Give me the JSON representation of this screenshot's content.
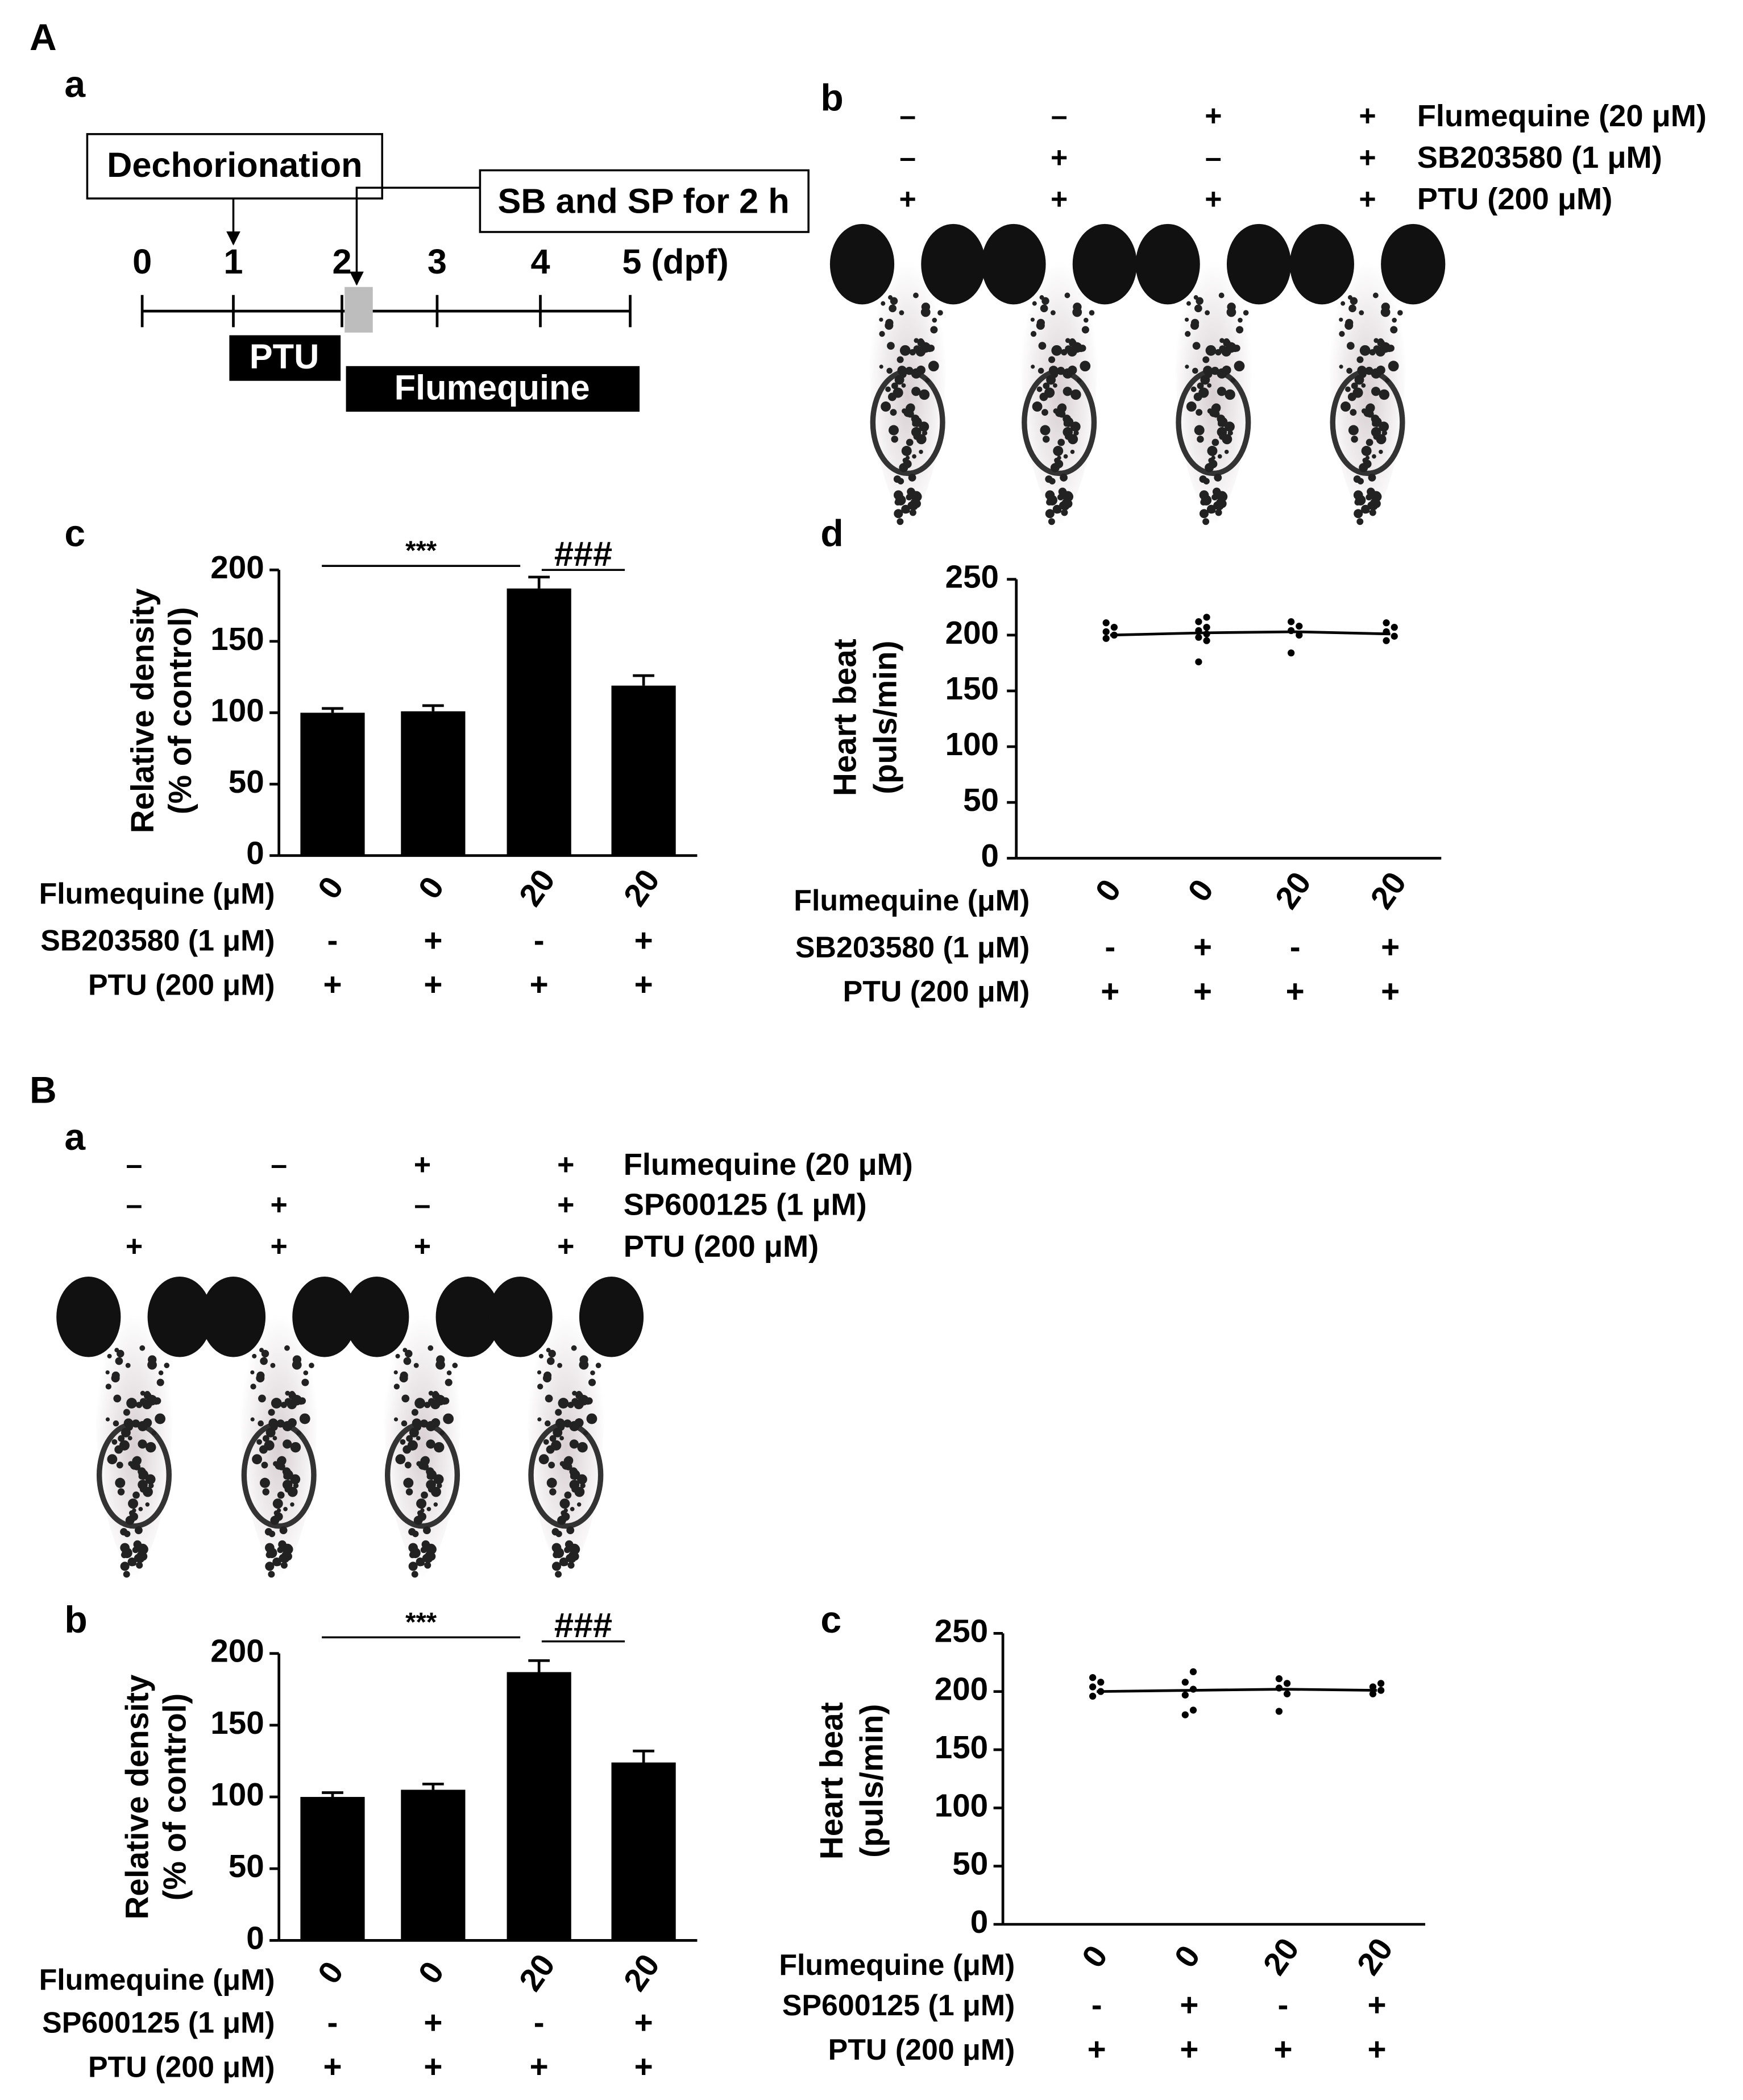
{
  "panel_labels": [
    "A",
    "a",
    "b",
    "c",
    "d",
    "B",
    "a",
    "b",
    "c"
  ],
  "timeline": {
    "boxes": [
      "Dechorionation",
      "SB and SP for 2 h"
    ],
    "ticks": [
      "0",
      "1",
      "2",
      "3",
      "4",
      "5 (dpf)"
    ],
    "bars": [
      "PTU",
      "Flumequine"
    ]
  },
  "treatments": [
    {
      "rows": [
        {
          "label": "Flumequine (20 μM)",
          "signs": [
            "–",
            "–",
            "+",
            "+"
          ]
        },
        {
          "label": "SB203580 (1 μM)",
          "signs": [
            "–",
            "+",
            "–",
            "+"
          ]
        },
        {
          "label": "PTU (200 μM)",
          "signs": [
            "+",
            "+",
            "+",
            "+"
          ]
        }
      ]
    },
    {
      "rows": [
        {
          "label": "Flumequine (20 μM)",
          "signs": [
            "–",
            "–",
            "+",
            "+"
          ]
        },
        {
          "label": "SP600125 (1 μM)",
          "signs": [
            "–",
            "+",
            "–",
            "+"
          ]
        },
        {
          "label": "PTU (200 μM)",
          "signs": [
            "+",
            "+",
            "+",
            "+"
          ]
        }
      ]
    }
  ],
  "chart_data": [
    {
      "type": "bar",
      "ylabel": [
        "Relative density",
        "(% of control)"
      ],
      "category_label": "Flumequine (μM)",
      "categories": [
        "0",
        "0",
        "20",
        "20"
      ],
      "condition_rows": [
        {
          "label": "SB203580 (1 μM)",
          "signs": [
            "-",
            "+",
            "-",
            "+"
          ]
        },
        {
          "label": "PTU (200 μM)",
          "signs": [
            "+",
            "+",
            "+",
            "+"
          ]
        }
      ],
      "values": [
        100,
        101,
        187,
        119
      ],
      "errors": [
        3,
        4,
        8,
        7
      ],
      "color": "#000000",
      "ylim": [
        0,
        200
      ],
      "yticks": [
        0,
        50,
        100,
        150,
        200
      ],
      "annotations": [
        "***",
        "###"
      ]
    },
    {
      "type": "dot",
      "ylabel": [
        "Heart beat",
        "(puls/min)"
      ],
      "category_label": "Flumequine (μM)",
      "categories": [
        "0",
        "0",
        "20",
        "20"
      ],
      "condition_rows": [
        {
          "label": "SB203580 (1 μM)",
          "signs": [
            "-",
            "+",
            "-",
            "+"
          ]
        },
        {
          "label": "PTU (200 μM)",
          "signs": [
            "+",
            "+",
            "+",
            "+"
          ]
        }
      ],
      "values": [
        [
          197,
          200,
          203,
          207,
          211
        ],
        [
          176,
          195,
          198,
          201,
          204,
          207,
          212,
          216
        ],
        [
          184,
          200,
          204,
          208,
          212
        ],
        [
          195,
          199,
          203,
          207,
          211
        ]
      ],
      "means": [
        200,
        202,
        203,
        201
      ],
      "color": "#000000",
      "ylim": [
        0,
        250
      ],
      "yticks": [
        0,
        50,
        100,
        150,
        200,
        250
      ]
    },
    {
      "type": "bar",
      "ylabel": [
        "Relative density",
        "(% of control)"
      ],
      "category_label": "Flumequine (μM)",
      "categories": [
        "0",
        "0",
        "20",
        "20"
      ],
      "condition_rows": [
        {
          "label": "SP600125 (1 μM)",
          "signs": [
            "-",
            "+",
            "-",
            "+"
          ]
        },
        {
          "label": "PTU (200 μM)",
          "signs": [
            "+",
            "+",
            "+",
            "+"
          ]
        }
      ],
      "values": [
        100,
        105,
        187,
        124
      ],
      "errors": [
        3,
        4,
        8,
        8
      ],
      "color": "#000000",
      "ylim": [
        0,
        200
      ],
      "yticks": [
        0,
        50,
        100,
        150,
        200
      ],
      "annotations": [
        "***",
        "###"
      ]
    },
    {
      "type": "dot",
      "ylabel": [
        "Heart beat",
        "(puls/min)"
      ],
      "category_label": "Flumequine (μM)",
      "categories": [
        "0",
        "0",
        "20",
        "20"
      ],
      "condition_rows": [
        {
          "label": "SP600125 (1 μM)",
          "signs": [
            "-",
            "+",
            "-",
            "+"
          ]
        },
        {
          "label": "PTU (200 μM)",
          "signs": [
            "+",
            "+",
            "+",
            "+"
          ]
        }
      ],
      "values": [
        [
          196,
          200,
          204,
          208,
          212
        ],
        [
          180,
          184,
          197,
          202,
          208,
          217
        ],
        [
          183,
          198,
          203,
          207,
          211
        ],
        [
          198,
          201,
          204,
          207
        ]
      ],
      "means": [
        200,
        201,
        202,
        201
      ],
      "color": "#000000",
      "ylim": [
        0,
        250
      ],
      "yticks": [
        0,
        50,
        100,
        150,
        200,
        250
      ]
    }
  ]
}
